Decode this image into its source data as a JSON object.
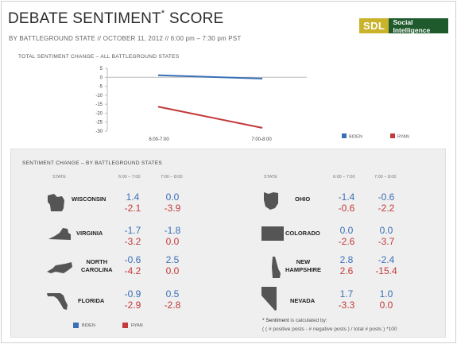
{
  "header": {
    "title": "DEBATE SENTIMENT",
    "title_mark": "*",
    "title_suffix": " SCORE",
    "subtitle": "BY BATTLEGROUND STATE  // OCTOBER 11, 2012 // 6:00 pm – 7:30 pm PST",
    "logo_mark": "SDL",
    "logo_text": "Social Intelligence"
  },
  "colors": {
    "biden": "#3a6fb5",
    "ryan": "#c23a3a",
    "logo_green": "#1e5a2c",
    "logo_gold": "#c9b32a"
  },
  "chart_data": {
    "type": "line",
    "title": "TOTAL SENTIMENT  CHANGE  – ALL BATTLEGROUND  STATES",
    "categories": [
      "6:00-7:00",
      "7:00-8:00"
    ],
    "series": [
      {
        "name": "BIDEN",
        "values": [
          1.1,
          -0.7
        ],
        "color": "#3a6fb5"
      },
      {
        "name": "RYAN",
        "values": [
          -16.5,
          -28.1
        ],
        "color": "#c23a3a"
      }
    ],
    "ylim": [
      -30,
      5
    ],
    "yticks": [
      5,
      0,
      -5,
      -10,
      -15,
      -20,
      -25,
      -30
    ],
    "legend": "bottom-right",
    "grid": false
  },
  "breakdown": {
    "title": "SENTIMENT  CHANGE  – BY BATTLEGROUND  STATES",
    "col_state": "STATE",
    "col_1": "6:00 – 7:00",
    "col_2": "7:00 – 8:00",
    "left": [
      {
        "name": "WISCONSIN",
        "biden": [
          "1.4",
          "0.0"
        ],
        "ryan": [
          "-2.1",
          "-3.9"
        ]
      },
      {
        "name": "VIRGINIA",
        "biden": [
          "-1.7",
          "-1.8"
        ],
        "ryan": [
          "-3.2",
          "0.0"
        ]
      },
      {
        "name": "NORTH\nCAROLINA",
        "biden": [
          "-0.6",
          "2.5"
        ],
        "ryan": [
          "-4.2",
          "0.0"
        ]
      },
      {
        "name": "FLORIDA",
        "biden": [
          "-0.9",
          "0.5"
        ],
        "ryan": [
          "-2.9",
          "-2.8"
        ]
      }
    ],
    "right": [
      {
        "name": "OHIO",
        "biden": [
          "-1.4",
          "-0.6"
        ],
        "ryan": [
          "-0.6",
          "-2.2"
        ]
      },
      {
        "name": "COLORADO",
        "biden": [
          "0.0",
          "0.0"
        ],
        "ryan": [
          "-2.6",
          "-3.7"
        ]
      },
      {
        "name": "NEW\nHAMPSHIRE",
        "biden": [
          "2.8",
          "-2.4"
        ],
        "ryan": [
          "2.6",
          "-15.4"
        ]
      },
      {
        "name": "NEVADA",
        "biden": [
          "1.7",
          "1.0"
        ],
        "ryan": [
          "-3.3",
          "0.0"
        ]
      }
    ],
    "legend_biden": "BIDEN",
    "legend_ryan": "RYAN",
    "note_star": "*",
    "note_label": " Sentiment",
    "note_line1": " is calculated by:",
    "note_line2": "( ( # positive posts - # negative posts ) / total # posts ) *100"
  }
}
